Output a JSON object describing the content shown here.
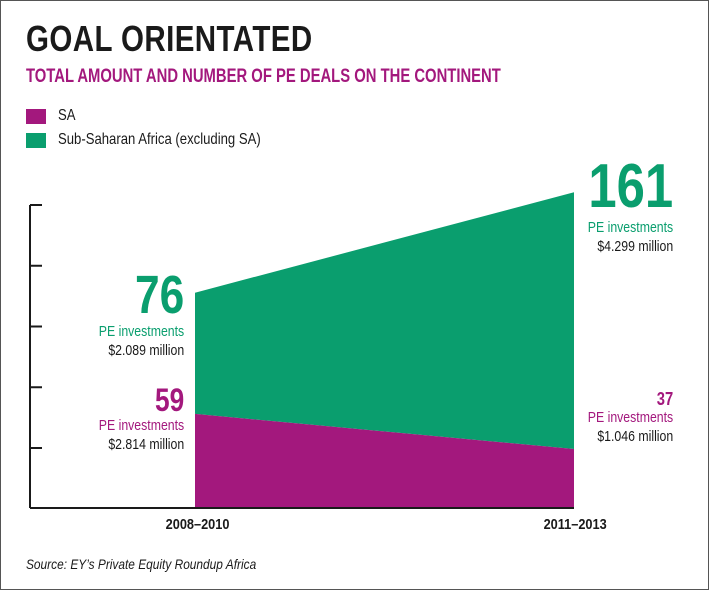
{
  "title": "GOAL ORIENTATED",
  "subtitle": "TOTAL AMOUNT AND NUMBER OF PE DEALS ON THE CONTINENT",
  "colors": {
    "sa": "#a3187d",
    "ssa": "#0a9e6e",
    "text": "#1a1a1a"
  },
  "legend": [
    {
      "label": "SA",
      "color": "#a3187d"
    },
    {
      "label": "Sub-Saharan Africa (excluding SA)",
      "color": "#0a9e6e"
    }
  ],
  "source": "Source: EY’s Private Equity Roundup Africa",
  "chart_data": {
    "type": "area",
    "stacked": true,
    "categories": [
      "2008–2010",
      "2011–2013"
    ],
    "series": [
      {
        "name": "SA",
        "values": [
          59,
          37
        ],
        "amounts": [
          "$2.814 million",
          "$1.046 million"
        ]
      },
      {
        "name": "Sub-Saharan Africa (excluding SA)",
        "values": [
          76,
          161
        ],
        "amounts": [
          "$2.089 million",
          "$4.299 million"
        ]
      }
    ],
    "ylim": [
      0,
      190
    ],
    "grid": false,
    "legend_position": "top-left",
    "annotations": {
      "ssa_start": {
        "number": "76",
        "label": "PE investments",
        "amount": "$2.089 million"
      },
      "ssa_end": {
        "number": "161",
        "label": "PE investments",
        "amount": "$4.299 million"
      },
      "sa_start": {
        "number": "59",
        "label": "PE investments",
        "amount": "$2.814 million"
      },
      "sa_end": {
        "number": "37",
        "label": "PE investments",
        "amount": "$1.046 million"
      }
    }
  }
}
